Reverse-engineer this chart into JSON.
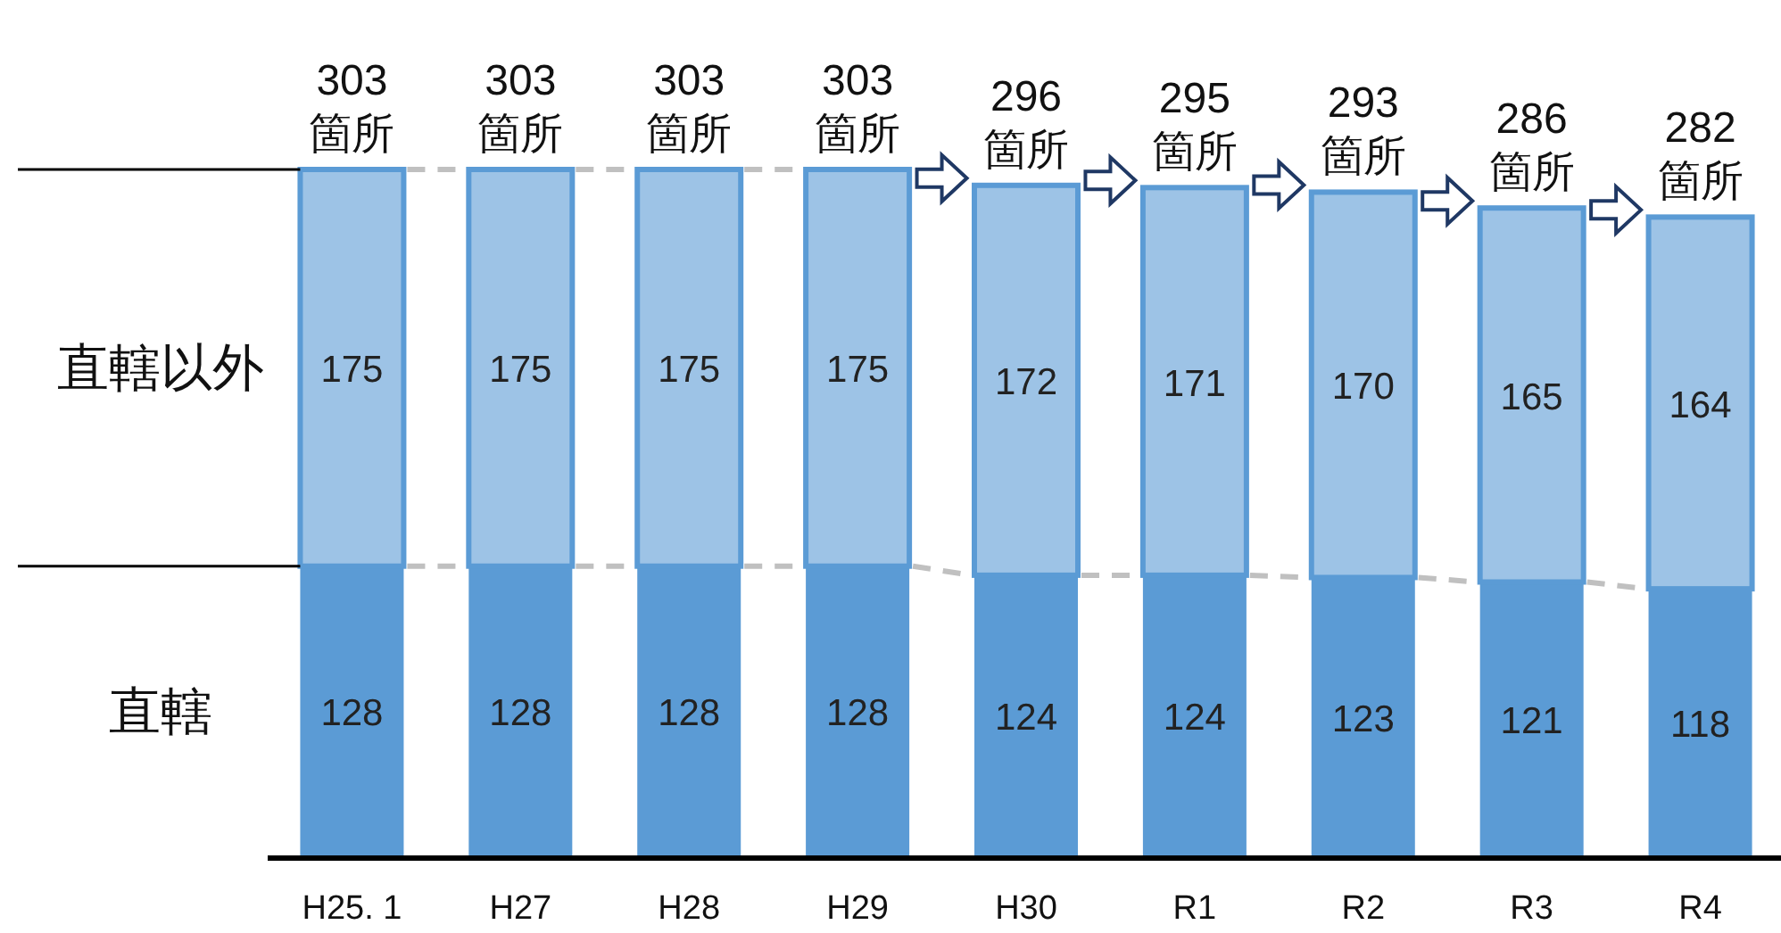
{
  "chart_data": {
    "type": "bar",
    "stacked": true,
    "data_labels": true,
    "categories": [
      "H25. 1",
      "H27",
      "H28",
      "H29",
      "H30",
      "R1",
      "R2",
      "R3",
      "R4"
    ],
    "series": [
      {
        "name": "直轄",
        "color": "#5b9bd5",
        "values": [
          128,
          128,
          128,
          128,
          124,
          124,
          123,
          121,
          118
        ]
      },
      {
        "name": "直轄以外",
        "color": "#9dc3e6",
        "values": [
          175,
          175,
          175,
          175,
          172,
          171,
          170,
          165,
          164
        ]
      }
    ],
    "totals": [
      "303\n箇所",
      "303\n箇所",
      "303\n箇所",
      "303\n箇所",
      "296\n箇所",
      "295\n箇所",
      "293\n箇所",
      "286\n箇所",
      "282\n箇所"
    ]
  }
}
